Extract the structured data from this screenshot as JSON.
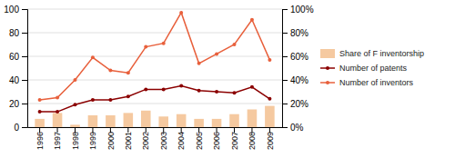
{
  "chart_data": {
    "type": "bar",
    "categories": [
      "1996",
      "1997",
      "1998",
      "1999",
      "2000",
      "2001",
      "2002",
      "2003",
      "2004",
      "2005",
      "2006",
      "2007",
      "2008",
      "2009"
    ],
    "series": [
      {
        "name": "Share of F inventorship",
        "type": "bar",
        "color": "#f5c9a0",
        "values": [
          7,
          12,
          2,
          10,
          10,
          12,
          14,
          9,
          11,
          7,
          7,
          11,
          15,
          18
        ]
      },
      {
        "name": "Number of patents",
        "type": "line",
        "color": "#8b0000",
        "marker": "circle",
        "values": [
          13,
          13,
          19,
          23,
          23,
          26,
          32,
          32,
          35,
          31,
          30,
          29,
          34,
          24
        ]
      },
      {
        "name": "Number of inventors",
        "type": "line",
        "color": "#e8603c",
        "marker": "circle",
        "axis": "y2",
        "values": [
          23,
          25,
          40,
          59,
          48,
          46,
          68,
          71,
          97,
          54,
          62,
          70,
          91,
          57
        ]
      }
    ],
    "ylim": [
      0,
      100
    ],
    "yticks": [
      0,
      20,
      40,
      60,
      80,
      100
    ],
    "y2lim": [
      0,
      100
    ],
    "y2ticks": [
      {
        "value": 0,
        "label": "0%"
      },
      {
        "value": 20,
        "label": "20%"
      },
      {
        "value": 40,
        "label": "40%"
      },
      {
        "value": 60,
        "label": "60%"
      },
      {
        "value": 80,
        "label": "80%"
      },
      {
        "value": 100,
        "label": "100%"
      }
    ],
    "grid": true,
    "legend": "right"
  }
}
